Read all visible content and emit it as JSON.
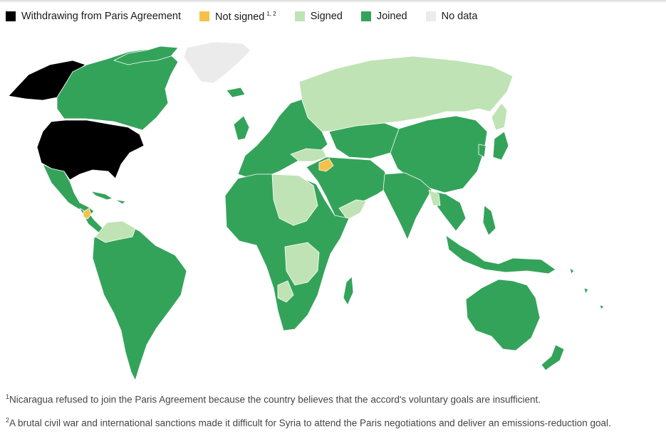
{
  "legend": {
    "items": [
      {
        "label": "Withdrawing from Paris Agreement",
        "sup": "",
        "color": "#000000"
      },
      {
        "label": "Not signed",
        "sup": "1, 2",
        "color": "#f6c14a"
      },
      {
        "label": "Signed",
        "sup": "",
        "color": "#bfe3b5"
      },
      {
        "label": "Joined",
        "sup": "",
        "color": "#34a35a"
      },
      {
        "label": "No data",
        "sup": "",
        "color": "#ebebeb"
      }
    ]
  },
  "map": {
    "regions": [
      {
        "name": "alaska",
        "status": "Withdrawing from Paris Agreement"
      },
      {
        "name": "united-states",
        "status": "Withdrawing from Paris Agreement"
      },
      {
        "name": "canada",
        "status": "Joined"
      },
      {
        "name": "greenland",
        "status": "No data"
      },
      {
        "name": "mexico",
        "status": "Joined"
      },
      {
        "name": "nicaragua",
        "status": "Not signed"
      },
      {
        "name": "syria",
        "status": "Not signed"
      },
      {
        "name": "russia",
        "status": "Signed"
      },
      {
        "name": "china",
        "status": "Joined"
      },
      {
        "name": "india",
        "status": "Joined"
      },
      {
        "name": "australia",
        "status": "Joined"
      },
      {
        "name": "south-america",
        "status": "Joined"
      },
      {
        "name": "africa",
        "status": "Joined"
      },
      {
        "name": "europe",
        "status": "Joined"
      },
      {
        "name": "middle-east",
        "status": "Joined"
      }
    ]
  },
  "footnotes": [
    {
      "sup": "1",
      "text": "Nicaragua refused to join the Paris Agreement because the country believes that the accord's voluntary goals are insufficient."
    },
    {
      "sup": "2",
      "text": "A brutal civil war and international sanctions made it difficult for Syria to attend the Paris negotiations and deliver an emissions-reduction goal."
    }
  ]
}
